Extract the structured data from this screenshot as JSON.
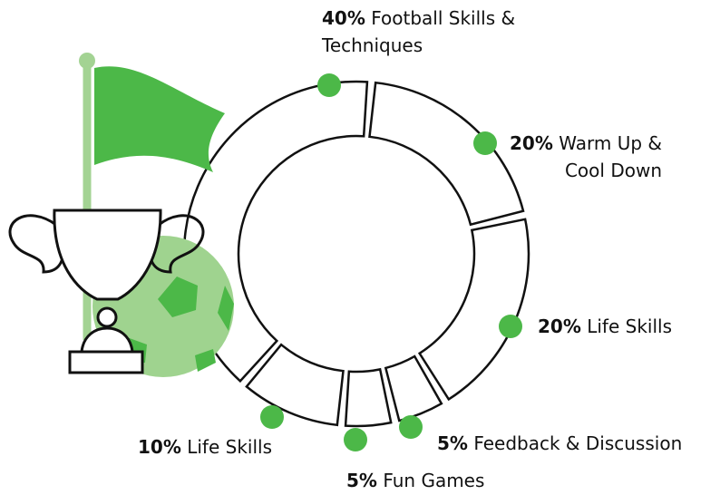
{
  "chart_data": {
    "type": "donut",
    "categories": [
      "Warm Up & Cool Down",
      "Life Skills",
      "Feedback & Discussion",
      "Fun Games",
      "Life Skills",
      "Football Skills & Techniques"
    ],
    "values": [
      20,
      20,
      5,
      5,
      10,
      40
    ],
    "value_labels": [
      "20%",
      "20%",
      "5%",
      "5%",
      "10%",
      "40%"
    ],
    "color": "#4cb848"
  }
}
